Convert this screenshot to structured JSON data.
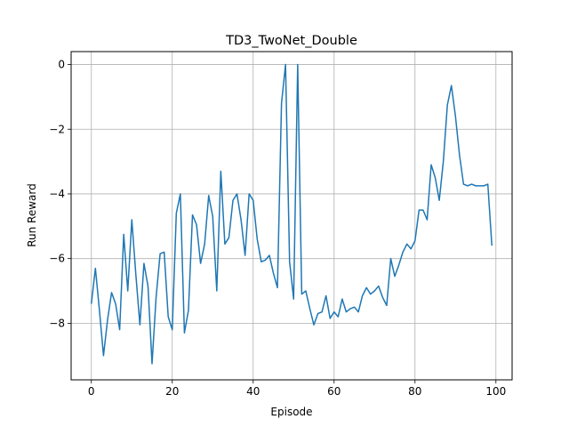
{
  "chart_data": {
    "type": "line",
    "title": "TD3_TwoNet_Double",
    "xlabel": "Episode",
    "ylabel": "Run Reward",
    "xlim": [
      -5,
      104
    ],
    "ylim": [
      -9.75,
      0.4
    ],
    "xticks": [
      0,
      20,
      40,
      60,
      80,
      100
    ],
    "yticks": [
      0,
      -2,
      -4,
      -6,
      -8
    ],
    "ytick_labels": [
      "0",
      "−2",
      "−4",
      "−6",
      "−8"
    ],
    "grid": true,
    "color": "#1f77b4",
    "series": [
      {
        "x": [
          0,
          1,
          2,
          3,
          4,
          5,
          6,
          7,
          8,
          9,
          10,
          11,
          12,
          13,
          14,
          15,
          16,
          17,
          18,
          19,
          20,
          21,
          22,
          23,
          24,
          25,
          26,
          27,
          28,
          29,
          30,
          31,
          32,
          33,
          34,
          35,
          36,
          37,
          38,
          39,
          40,
          41,
          42,
          43,
          44,
          45,
          46,
          47,
          48,
          49,
          50,
          51,
          52,
          53,
          54,
          55,
          56,
          57,
          58,
          59,
          60,
          61,
          62,
          63,
          64,
          65,
          66,
          67,
          68,
          69,
          70,
          71,
          72,
          73,
          74,
          75,
          76,
          77,
          78,
          79,
          80,
          81,
          82,
          83,
          84,
          85,
          86,
          87,
          88,
          89,
          90,
          91,
          92,
          93,
          94,
          95,
          96,
          97,
          98,
          99
        ],
        "values": [
          -7.4,
          -6.3,
          -7.6,
          -9.0,
          -7.9,
          -7.05,
          -7.4,
          -8.2,
          -5.25,
          -7.0,
          -4.8,
          -6.5,
          -8.05,
          -6.15,
          -6.85,
          -9.25,
          -7.2,
          -5.85,
          -5.8,
          -7.8,
          -8.2,
          -4.6,
          -4.0,
          -8.3,
          -7.6,
          -4.65,
          -4.95,
          -6.15,
          -5.55,
          -4.05,
          -4.7,
          -7.0,
          -3.3,
          -5.55,
          -5.35,
          -4.2,
          -4.0,
          -4.8,
          -5.9,
          -4.0,
          -4.2,
          -5.4,
          -6.1,
          -6.05,
          -5.9,
          -6.45,
          -6.9,
          -1.2,
          0.0,
          -6.1,
          -7.25,
          0.0,
          -7.1,
          -7.0,
          -7.55,
          -8.05,
          -7.7,
          -7.65,
          -7.15,
          -7.85,
          -7.65,
          -7.8,
          -7.25,
          -7.65,
          -7.55,
          -7.5,
          -7.65,
          -7.15,
          -6.9,
          -7.1,
          -7.0,
          -6.85,
          -7.2,
          -7.45,
          -6.0,
          -6.55,
          -6.2,
          -5.8,
          -5.55,
          -5.7,
          -5.45,
          -4.5,
          -4.5,
          -4.8,
          -3.1,
          -3.5,
          -4.2,
          -3.0,
          -1.25,
          -0.65,
          -1.6,
          -2.8,
          -3.7,
          -3.75,
          -3.7,
          -3.75,
          -3.75,
          -3.75,
          -3.7,
          -5.6
        ]
      }
    ]
  }
}
